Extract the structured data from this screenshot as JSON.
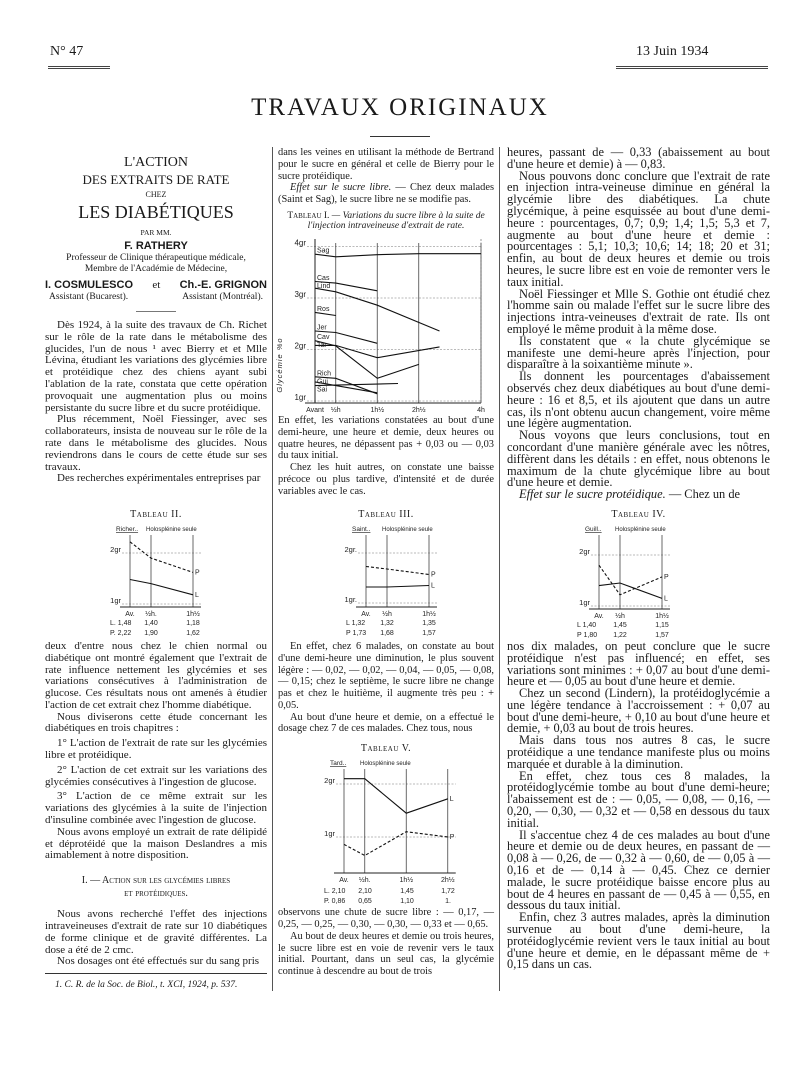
{
  "header": {
    "issue": "N° 47",
    "date": "13 Juin 1934",
    "section": "TRAVAUX ORIGINAUX"
  },
  "article": {
    "title1": "L'ACTION",
    "title2": "DES EXTRAITS DE RATE",
    "title3": "CHEZ",
    "title4": "LES DIABÉTIQUES",
    "par": "PAR MM.",
    "author1": "F. RATHERY",
    "author1_role1": "Professeur de Clinique thérapeutique médicale,",
    "author1_role2": "Membre de l'Académie de Médecine,",
    "author2": "I. COSMULESCO",
    "et": "et",
    "author3": "Ch.-E. GRIGNON",
    "author2_role": "Assistant (Bucarest).",
    "author3_role": "Assistant (Montréal)."
  },
  "left_top": [
    {
      "text": "Dès 1924, à la suite des travaux de Ch. Richet sur le rôle de la rate dans le métabolisme des glucides, l'un de nous ¹ avec Bierry et et Mlle Lévina, étudiant les variations des glycémies libre et protéidique chez des chiens ayant subi l'ablation de la rate, constata que cette opération provoquait une augmentation plus ou moins persistante du sucre libre et du sucre protéidique."
    },
    {
      "text": "Plus récemment, Noël Fiessinger, avec ses collaborateurs, insista de nouveau sur le rôle de la rate dans le métabolisme des glucides. Nous reviendrons dans le cours de cette étude sur ses travaux."
    },
    {
      "text": "Des recherches expérimentales entreprises par"
    }
  ],
  "left_bottom": [
    {
      "text": "deux d'entre nous chez le chien normal ou diabétique ont montré également que l'extrait de rate influence nettement les glycémies et ses variations consécutives à l'administration de glucose. Ces résultats nous ont amenés à étudier l'action de cet extrait chez l'homme diabétique.",
      "noindent": true
    },
    {
      "text": "Nous diviserons cette étude concernant les diabétiques en trois chapitres :"
    },
    {
      "text": "1° L'action de l'extrait de rate sur les glycémies libre et protéidique.",
      "gap": true
    },
    {
      "text": "2° L'action de cet extrait sur les variations des glycémies consécutives à l'ingestion de glucose.",
      "gap": true
    },
    {
      "text": "3° L'action de ce même extrait sur les variations des glycémies à la suite de l'injection d'insuline combinée avec l'ingestion de glucose.",
      "gap": true
    },
    {
      "text": "Nous avons employé un extrait de rate délipidé et déprotéidé que la maison Deslandres a mis aimablement à notre disposition."
    }
  ],
  "section_heading": {
    "line1": "I. — Action sur les glycémies libres",
    "line2": "et protéidiques."
  },
  "left_section": [
    {
      "text": "Nous avons recherché l'effet des injections intraveineuses d'extrait de rate sur 10 diabétiques de forme clinique et de gravité différentes. La dose a été de 2 cmc."
    },
    {
      "text": "Nos dosages ont été effectués sur du sang pris"
    }
  ],
  "footnote": "1. C. R. de la Soc. de Biol., t. XCI, 1924, p. 537.",
  "middle_top": [
    {
      "text": "dans les veines en utilisant la méthode de Bertrand pour le sucre en général et celle de Bierry pour le sucre protéidique.",
      "noindent": true
    },
    {
      "lead": "Effet sur le sucre libre.",
      "text": " — Chez deux malades (Saint et Sag), le sucre libre ne se modifie pas."
    }
  ],
  "tableau1_caption": {
    "label": "Tableau I.",
    "text": " — Variations du sucre libre à la suite de l'injection intraveineuse d'extrait de rate."
  },
  "middle_mid": [
    {
      "text": "En effet, les variations constatées au bout d'une demi-heure, une heure et demie, deux heures ou quatre heures, ne dépassent pas + 0,03 ou — 0,03 du taux initial.",
      "noindent": true
    },
    {
      "text": "Chez les huit autres, on constate une baisse précoce ou plus tardive, d'intensité et de durée variables avec le cas."
    }
  ],
  "middle_bottom": [
    {
      "text": "En effet, chez 6 malades, on constate au bout d'une demi-heure une diminution, le plus souvent légère : — 0,02, — 0,02, — 0,04, — 0,05, — 0,08, — 0,15; chez le septième, le sucre libre ne change pas et chez le huitième, il augmente très peu : + 0,05."
    },
    {
      "text": "Au bout d'une heure et demie, on a effectué le dosage chez 7 de ces malades. Chez tous, nous"
    }
  ],
  "middle_end": [
    {
      "text": "observons une chute de sucre libre : — 0,17, — 0,25, — 0,25, — 0,30, — 0,30, — 0,33 et — 0,65.",
      "noindent": true
    },
    {
      "text": "Au bout de deux heures et demie ou trois heures, le sucre libre est en voie de revenir vers le taux initial. Pourtant, dans un seul cas, la glycémie continue à descendre au bout de trois"
    }
  ],
  "right_top": [
    {
      "text": "heures, passant de — 0,33 (abaissement au bout d'une heure et demie) à — 0,83.",
      "noindent": true
    },
    {
      "text": "Nous pouvons donc conclure que l'extrait de rate en injection intra-veineuse diminue en général la glycémie libre des diabétiques. La chute glycémique, à peine esquissée au bout d'une demi-heure : pourcentages, 0,7; 0,9; 1,4; 1,5; 5,3 et 7, augmente au bout d'une heure et demie : pourcentages : 5,1; 10,3; 10,6; 14; 18; 20 et 31; enfin, au bout de deux heures et demie ou trois heures, le sucre libre est en voie de remonter vers le taux initial."
    },
    {
      "text": "Noël Fiessinger et Mlle S. Gothie ont étudié chez l'homme sain ou malade l'effet sur le sucre libre des injections intra-veineuses d'extrait de rate. Ils ont employé le même produit à la même dose."
    },
    {
      "text": "Ils constatent que « la chute glycémique se manifeste une demi-heure après l'injection, pour disparaître à la soixantième minute »."
    },
    {
      "text": "Ils donnent les pourcentages d'abaissement observés chez deux diabétiques au bout d'une demi-heure : 16 et 8,5, et ils ajoutent que dans un autre cas, ils n'ont obtenu aucun changement, voire même une légère augmentation."
    },
    {
      "text": "Nous voyons que leurs conclusions, tout en concordant d'une manière générale avec les nôtres, diffèrent dans les détails : en effet, nous obtenons le maximum de la chute glycémique libre au bout d'une heure et demie."
    },
    {
      "lead": "Effet sur le sucre protéidique.",
      "text": " — Chez un de"
    }
  ],
  "right_bottom": [
    {
      "text": "nos dix malades, on peut conclure que le sucre protéidique n'est pas influencé; en effet, ses variations sont minimes : + 0,07 au bout d'une demi-heure et — 0,05 au bout d'une heure et demie.",
      "noindent": true
    },
    {
      "text": "Chez un second (Lindern), la protéidoglycémie a une légère tendance à l'accroissement : + 0,07 au bout d'une demi-heure, + 0,10 au bout d'une heure et demie, + 0,03 au bout de trois heures."
    },
    {
      "text": "Mais dans tous nos autres 8 cas, le sucre protéidique a une tendance manifeste plus ou moins marquée et durable à la diminution."
    },
    {
      "text": "En effet, chez tous ces 8 malades, la protéidoglycémie tombe au bout d'une demi-heure; l'abaissement est de : — 0,05, — 0,08, — 0,16, — 0,20, — 0,30, — 0,32 et — 0,58 en dessous du taux initial."
    },
    {
      "text": "Il s'accentue chez 4 de ces malades au bout d'une heure et demie ou de deux heures, en passant de — 0,08 à — 0,26, de — 0,32 à — 0,60, de — 0,05 à — 0,16 et de — 0,14 à — 0,45. Chez ce dernier malade, le sucre protéidique baisse encore plus au bout de 4 heures en passant de — 0,45 à — 0,55, en dessous du taux initial."
    },
    {
      "text": "Enfin, chez 3 autres malades, après la diminution survenue au bout d'une demi-heure, la protéidoglycémie revient vers le taux initial au bout d'une heure et demie, en le dépassant même de + 0,15 dans un cas."
    }
  ],
  "chart_data": [
    {
      "id": "t1",
      "type": "line",
      "caption": "Tableau I.",
      "ylabel": "Glycémie %o",
      "x_ticks": [
        {
          "x": 0,
          "label": "Avant"
        },
        {
          "x": 0.5,
          "label": "½h"
        },
        {
          "x": 1.5,
          "label": "1h½"
        },
        {
          "x": 2.5,
          "label": "2h½"
        },
        {
          "x": 4,
          "label": "4h"
        }
      ],
      "y_ticks": [
        {
          "y": 4,
          "label": "4gr"
        },
        {
          "y": 3,
          "label": "3gr"
        },
        {
          "y": 2,
          "label": "2gr"
        },
        {
          "y": 1,
          "label": "1gr"
        }
      ],
      "xlim": [
        0,
        4
      ],
      "ylim": [
        1,
        4
      ],
      "grid": true,
      "series": [
        {
          "name": "Sag",
          "points": [
            [
              0,
              3.85
            ],
            [
              0.5,
              3.8
            ],
            [
              1.5,
              3.84
            ],
            [
              2.5,
              3.86
            ],
            [
              4,
              3.86
            ]
          ]
        },
        {
          "name": "Cas",
          "points": [
            [
              0,
              3.32
            ],
            [
              0.5,
              3.29
            ],
            [
              1.5,
              3.14
            ]
          ]
        },
        {
          "name": "Lind",
          "points": [
            [
              0,
              3.19
            ],
            [
              0.5,
              3.12
            ],
            [
              1.5,
              2.86
            ],
            [
              3,
              2.36
            ]
          ]
        },
        {
          "name": "Ros",
          "points": [
            [
              0,
              2.72
            ],
            [
              0.5,
              2.66
            ]
          ]
        },
        {
          "name": "Jer",
          "points": [
            [
              0,
              2.36
            ],
            [
              0.5,
              2.33
            ],
            [
              1.5,
              2.12
            ]
          ]
        },
        {
          "name": "Cav",
          "points": [
            [
              0,
              2.17
            ],
            [
              0.5,
              2.07
            ],
            [
              1.5,
              1.44
            ],
            [
              2.5,
              1.71
            ]
          ]
        },
        {
          "name": "Tar",
          "points": [
            [
              0,
              2.08
            ],
            [
              0.5,
              2.08
            ],
            [
              1.5,
              1.84
            ],
            [
              3,
              2.05
            ]
          ]
        },
        {
          "name": "Rich",
          "points": [
            [
              0,
              1.47
            ],
            [
              0.5,
              1.44
            ],
            [
              1.5,
              1.14
            ]
          ]
        },
        {
          "name": "Gui",
          "points": [
            [
              0,
              1.37
            ],
            [
              0.5,
              1.3
            ],
            [
              1.5,
              1.16
            ]
          ]
        },
        {
          "name": "Sai",
          "points": [
            [
              0,
              1.3
            ],
            [
              2,
              1.34
            ]
          ]
        }
      ]
    },
    {
      "id": "t2",
      "type": "line",
      "caption": "Tableau II.",
      "patient": "Richer..",
      "subtitle": "Holosplénine seule",
      "x_ticks": [
        {
          "x": 0,
          "label": "Av."
        },
        {
          "x": 0.5,
          "label": "½h."
        },
        {
          "x": 1.5,
          "label": "1h½"
        }
      ],
      "y_ticks": [
        {
          "y": 2,
          "label": "2gr"
        },
        {
          "y": 1,
          "label": "1gr"
        }
      ],
      "series": [
        {
          "name": "L",
          "style": "solid",
          "points": [
            [
              0,
              1.48
            ],
            [
              0.5,
              1.4
            ],
            [
              1.5,
              1.18
            ]
          ]
        },
        {
          "name": "P",
          "style": "dashed",
          "points": [
            [
              0,
              2.22
            ],
            [
              0.5,
              1.9
            ],
            [
              1.5,
              1.62
            ]
          ]
        }
      ],
      "table": [
        [
          "L. 1,48",
          "1,40",
          "1,18"
        ],
        [
          "P. 2,22",
          "1,90",
          "1,62"
        ]
      ]
    },
    {
      "id": "t3",
      "type": "line",
      "caption": "Tableau III.",
      "patient": "Saint..",
      "subtitle": "Holosplénine seule",
      "x_ticks": [
        {
          "x": 0,
          "label": "Av."
        },
        {
          "x": 0.5,
          "label": "½h"
        },
        {
          "x": 1.5,
          "label": "1h½"
        }
      ],
      "y_ticks": [
        {
          "y": 2,
          "label": "2gr."
        },
        {
          "y": 1,
          "label": "1gr."
        }
      ],
      "series": [
        {
          "name": "L",
          "style": "solid",
          "points": [
            [
              0,
              1.32
            ],
            [
              0.5,
              1.32
            ],
            [
              1.5,
              1.35
            ]
          ]
        },
        {
          "name": "P",
          "style": "dashed",
          "points": [
            [
              0,
              1.73
            ],
            [
              0.5,
              1.68
            ],
            [
              1.5,
              1.57
            ]
          ]
        }
      ],
      "table": [
        [
          "L 1,32",
          "1,32",
          "1,35"
        ],
        [
          "P 1,73",
          "1,68",
          "1,57"
        ]
      ]
    },
    {
      "id": "t4",
      "type": "line",
      "caption": "Tableau IV.",
      "patient": "Guill..",
      "subtitle": "Holosplénine seule",
      "x_ticks": [
        {
          "x": 0,
          "label": "Av."
        },
        {
          "x": 0.5,
          "label": "½h"
        },
        {
          "x": 1.5,
          "label": "1h½"
        }
      ],
      "y_ticks": [
        {
          "y": 2,
          "label": "2gr"
        },
        {
          "y": 1,
          "label": "1gr"
        }
      ],
      "series": [
        {
          "name": "L",
          "style": "solid",
          "points": [
            [
              0,
              1.4
            ],
            [
              0.5,
              1.45
            ],
            [
              1.5,
              1.15
            ]
          ]
        },
        {
          "name": "P",
          "style": "dashed",
          "points": [
            [
              0,
              1.8
            ],
            [
              0.5,
              1.22
            ],
            [
              1.5,
              1.57
            ]
          ]
        }
      ],
      "table": [
        [
          "L 1,40",
          "1,45",
          "1,15"
        ],
        [
          "P 1,80",
          "1,22",
          "1,57"
        ]
      ]
    },
    {
      "id": "t5",
      "type": "line",
      "caption": "Tableau V.",
      "patient": "Tard..",
      "subtitle": "Holosplénine seule",
      "x_ticks": [
        {
          "x": 0,
          "label": "Av."
        },
        {
          "x": 0.5,
          "label": "½h."
        },
        {
          "x": 1.5,
          "label": "1h½"
        },
        {
          "x": 2.5,
          "label": "2h½"
        }
      ],
      "y_ticks": [
        {
          "y": 2,
          "label": "2gr"
        },
        {
          "y": 1,
          "label": "1gr"
        }
      ],
      "series": [
        {
          "name": "L",
          "style": "solid",
          "points": [
            [
              0,
              2.1
            ],
            [
              0.5,
              2.1
            ],
            [
              1.5,
              1.45
            ],
            [
              2.5,
              1.72
            ]
          ]
        },
        {
          "name": "P",
          "style": "dashed",
          "points": [
            [
              0,
              0.86
            ],
            [
              0.5,
              0.65
            ],
            [
              1.5,
              1.1
            ],
            [
              2.5,
              1.0
            ]
          ]
        }
      ],
      "table": [
        [
          "L. 2,10",
          "2,10",
          "1,45",
          "1,72"
        ],
        [
          "P. 0,86",
          "0,65",
          "1,10",
          "1."
        ]
      ]
    }
  ]
}
